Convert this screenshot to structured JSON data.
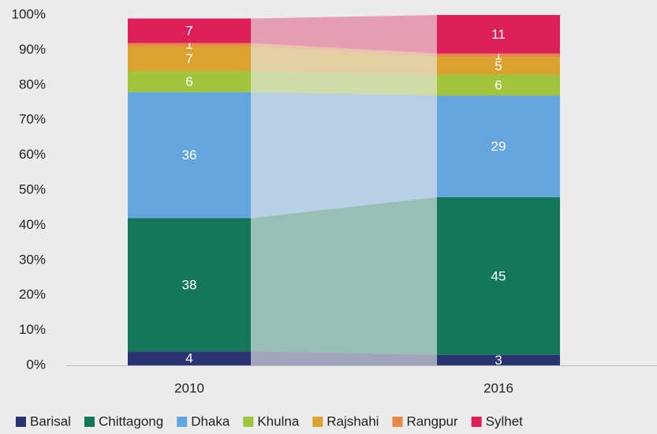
{
  "chart_data": {
    "type": "stacked-bar",
    "categories": [
      "2010",
      "2016"
    ],
    "series": [
      {
        "name": "Barisal",
        "color": "#2b3472",
        "values": [
          4,
          3
        ]
      },
      {
        "name": "Chittagong",
        "color": "#15775a",
        "values": [
          38,
          45
        ]
      },
      {
        "name": "Dhaka",
        "color": "#63a5dc",
        "values": [
          36,
          29
        ]
      },
      {
        "name": "Khulna",
        "color": "#a2c43c",
        "values": [
          6,
          6
        ]
      },
      {
        "name": "Rajshahi",
        "color": "#dba22f",
        "values": [
          7,
          5
        ]
      },
      {
        "name": "Rangpur",
        "color": "#e8874a",
        "values": [
          1,
          1
        ]
      },
      {
        "name": "Sylhet",
        "color": "#dd1f5a",
        "values": [
          7,
          11
        ]
      }
    ],
    "ylim": [
      0,
      100
    ],
    "yticks": [
      {
        "value": 0,
        "label": "0%"
      },
      {
        "value": 10,
        "label": "10%"
      },
      {
        "value": 20,
        "label": "20%"
      },
      {
        "value": 30,
        "label": "30%"
      },
      {
        "value": 40,
        "label": "40%"
      },
      {
        "value": 50,
        "label": "50%"
      },
      {
        "value": 60,
        "label": "60%"
      },
      {
        "value": 70,
        "label": "70%"
      },
      {
        "value": 80,
        "label": "80%"
      },
      {
        "value": 90,
        "label": "90%"
      },
      {
        "value": 100,
        "label": "100%"
      }
    ]
  }
}
